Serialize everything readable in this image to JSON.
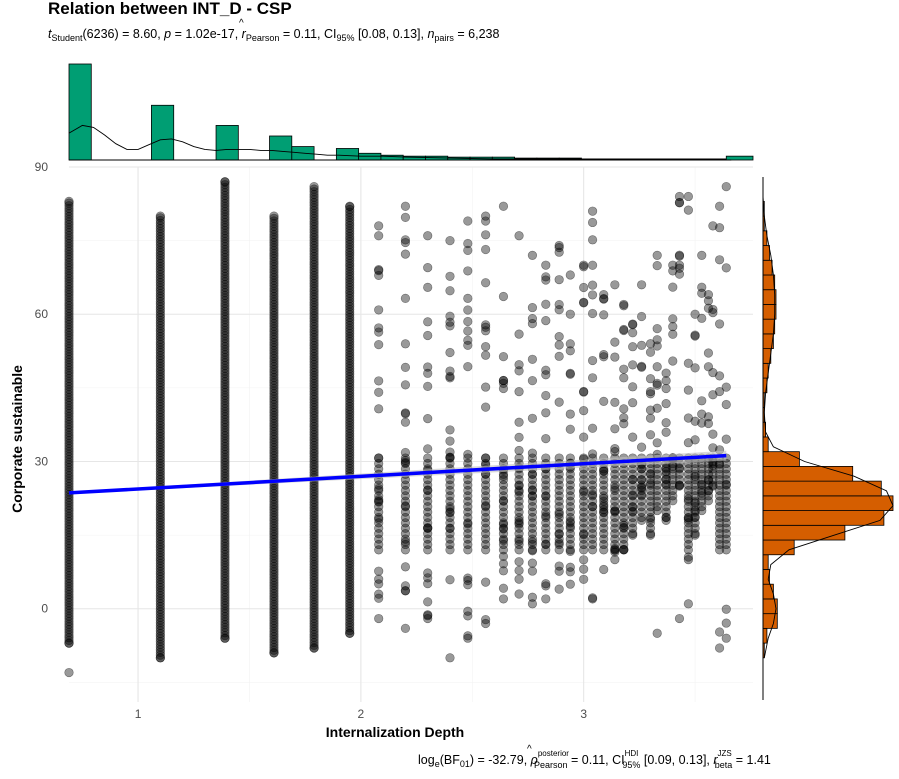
{
  "chart_data": {
    "type": "scatter",
    "title": "Relation between INT_D - CSP",
    "subtitle": {
      "t_label": "t",
      "t_sub": "Student",
      "t_rest": "(6236) = 8.60, ",
      "p_label": "p",
      "p_rest": " = 1.02e-17, ",
      "r_hat": "^",
      "r_label": "r",
      "r_sub": "Pearson",
      "r_rest": " = 0.11, CI",
      "ci_sub": "95%",
      "ci_rest": " [0.08, 0.13], ",
      "n_label": "n",
      "n_sub": "pairs",
      "n_rest": " = 6,238"
    },
    "caption": {
      "log_label": "log",
      "log_sub": "e",
      "bf_text": "(BF",
      "bf_sub": "01",
      "bf_rest": ") = -32.79, ",
      "rho_hat": "^",
      "rho_label": "ρ",
      "rho_sup": "posterior",
      "rho_sub": "Pearson",
      "rho_rest": " = 0.11, CI",
      "ci_sup": "HDI",
      "ci_sub": "95%",
      "ci_rest": " [0.09, 0.13], ",
      "r_label": "r",
      "r_sup": "JZS",
      "r_sub": "beta",
      "r_rest": " = 1.41"
    },
    "xlabel": "Internalization Depth",
    "ylabel": "Corporate sustainable",
    "xlim": [
      0.69,
      3.76
    ],
    "ylim": [
      -19,
      90
    ],
    "xticks": [
      1,
      2,
      3
    ],
    "yticks": [
      0,
      30,
      60,
      90
    ],
    "grid": true,
    "regression": {
      "x": [
        0.69,
        3.64
      ],
      "y": [
        23.6,
        31.2
      ],
      "color": "#0000ff",
      "ci_band_color": "#bfbfbf"
    },
    "point_color": "#000000",
    "point_opacity": 0.4,
    "columns": [
      {
        "x": 0.69,
        "ymin": -7,
        "ymax": 83,
        "extra": [
          -13
        ]
      },
      {
        "x": 1.1,
        "ymin": -10,
        "ymax": 80,
        "extra": []
      },
      {
        "x": 1.39,
        "ymin": -6,
        "ymax": 87,
        "extra": []
      },
      {
        "x": 1.61,
        "ymin": -9,
        "ymax": 80,
        "extra": []
      },
      {
        "x": 1.79,
        "ymin": -8,
        "ymax": 86,
        "extra": []
      },
      {
        "x": 1.95,
        "ymin": -5,
        "ymax": 82,
        "extra": []
      },
      {
        "x": 2.08,
        "ymin": -2,
        "ymax": 78,
        "extra": []
      },
      {
        "x": 2.2,
        "ymin": -4,
        "ymax": 82,
        "extra": []
      },
      {
        "x": 2.3,
        "ymin": -2,
        "ymax": 76,
        "extra": []
      },
      {
        "x": 2.4,
        "ymin": -10,
        "ymax": 75,
        "extra": []
      },
      {
        "x": 2.48,
        "ymin": -6,
        "ymax": 79,
        "extra": []
      },
      {
        "x": 2.56,
        "ymin": -3,
        "ymax": 80,
        "extra": []
      },
      {
        "x": 2.64,
        "ymin": 2,
        "ymax": 82,
        "extra": []
      },
      {
        "x": 2.71,
        "ymin": 3,
        "ymax": 76,
        "extra": []
      },
      {
        "x": 2.77,
        "ymin": 1,
        "ymax": 72,
        "extra": []
      },
      {
        "x": 2.83,
        "ymin": 2,
        "ymax": 70,
        "extra": []
      },
      {
        "x": 2.89,
        "ymin": 4,
        "ymax": 74,
        "extra": []
      },
      {
        "x": 2.94,
        "ymin": 5,
        "ymax": 68,
        "extra": []
      },
      {
        "x": 3.0,
        "ymin": 6,
        "ymax": 70,
        "extra": []
      },
      {
        "x": 3.04,
        "ymin": 2,
        "ymax": 81,
        "extra": []
      },
      {
        "x": 3.09,
        "ymin": 8,
        "ymax": 64,
        "extra": []
      },
      {
        "x": 3.14,
        "ymin": 10,
        "ymax": 66,
        "extra": []
      },
      {
        "x": 3.18,
        "ymin": 12,
        "ymax": 62,
        "extra": []
      },
      {
        "x": 3.22,
        "ymin": 15,
        "ymax": 58,
        "extra": []
      },
      {
        "x": 3.26,
        "ymin": 18,
        "ymax": 66,
        "extra": []
      },
      {
        "x": 3.3,
        "ymin": 15,
        "ymax": 54,
        "extra": []
      },
      {
        "x": 3.33,
        "ymin": 20,
        "ymax": 72,
        "extra": [
          -5
        ]
      },
      {
        "x": 3.37,
        "ymin": 18,
        "ymax": 48,
        "extra": []
      },
      {
        "x": 3.4,
        "ymin": 22,
        "ymax": 70,
        "extra": []
      },
      {
        "x": 3.43,
        "ymin": 25,
        "ymax": 84,
        "extra": [
          -2
        ]
      },
      {
        "x": 3.47,
        "ymin": 10,
        "ymax": 84,
        "extra": [
          1
        ]
      },
      {
        "x": 3.5,
        "ymin": 15,
        "ymax": 60,
        "extra": []
      },
      {
        "x": 3.53,
        "ymin": 20,
        "ymax": 72,
        "extra": []
      },
      {
        "x": 3.56,
        "ymin": 22,
        "ymax": 64,
        "extra": []
      },
      {
        "x": 3.58,
        "ymin": 25,
        "ymax": 78,
        "extra": []
      },
      {
        "x": 3.61,
        "ymin": -8,
        "ymax": 82,
        "extra": []
      },
      {
        "x": 3.64,
        "ymin": -6,
        "ymax": 86,
        "extra": []
      }
    ],
    "x_histogram": {
      "fill": "#009e73",
      "bins": [
        {
          "x0": 0.69,
          "x1": 0.79,
          "count": 100
        },
        {
          "x0": 0.79,
          "x1": 1.06,
          "count": 0
        },
        {
          "x0": 1.06,
          "x1": 1.16,
          "count": 57
        },
        {
          "x0": 1.16,
          "x1": 1.35,
          "count": 0
        },
        {
          "x0": 1.35,
          "x1": 1.45,
          "count": 36
        },
        {
          "x0": 1.45,
          "x1": 1.59,
          "count": 0
        },
        {
          "x0": 1.59,
          "x1": 1.69,
          "count": 25
        },
        {
          "x0": 1.69,
          "x1": 1.79,
          "count": 14
        },
        {
          "x0": 1.79,
          "x1": 1.89,
          "count": 0
        },
        {
          "x0": 1.89,
          "x1": 1.99,
          "count": 12
        },
        {
          "x0": 1.99,
          "x1": 2.09,
          "count": 7
        },
        {
          "x0": 2.09,
          "x1": 2.19,
          "count": 5
        },
        {
          "x0": 2.19,
          "x1": 2.29,
          "count": 4
        },
        {
          "x0": 2.29,
          "x1": 2.39,
          "count": 4
        },
        {
          "x0": 2.39,
          "x1": 2.49,
          "count": 3
        },
        {
          "x0": 2.49,
          "x1": 2.59,
          "count": 3
        },
        {
          "x0": 2.59,
          "x1": 2.69,
          "count": 3
        },
        {
          "x0": 2.69,
          "x1": 2.79,
          "count": 2
        },
        {
          "x0": 2.79,
          "x1": 2.89,
          "count": 2
        },
        {
          "x0": 2.89,
          "x1": 2.99,
          "count": 2
        },
        {
          "x0": 2.99,
          "x1": 3.09,
          "count": 1
        },
        {
          "x0": 3.09,
          "x1": 3.19,
          "count": 1
        },
        {
          "x0": 3.19,
          "x1": 3.29,
          "count": 1
        },
        {
          "x0": 3.29,
          "x1": 3.39,
          "count": 1
        },
        {
          "x0": 3.39,
          "x1": 3.49,
          "count": 1
        },
        {
          "x0": 3.49,
          "x1": 3.59,
          "count": 1
        },
        {
          "x0": 3.59,
          "x1": 3.64,
          "count": 1
        },
        {
          "x0": 3.64,
          "x1": 3.76,
          "count": 4
        }
      ],
      "density_x": [
        0.69,
        0.75,
        0.8,
        0.85,
        0.9,
        0.95,
        1.0,
        1.05,
        1.1,
        1.15,
        1.2,
        1.25,
        1.3,
        1.35,
        1.4,
        1.45,
        1.5,
        1.55,
        1.6,
        1.65,
        1.7,
        1.75,
        1.8,
        1.85,
        1.9,
        2.0,
        2.1,
        2.2,
        2.4,
        2.6,
        2.8,
        3.0,
        3.2,
        3.4,
        3.6,
        3.64
      ],
      "density_y": [
        28,
        36,
        34,
        26,
        17,
        11,
        11,
        16,
        21,
        22,
        19,
        14,
        11,
        10,
        11,
        11,
        11,
        10,
        10,
        9,
        8,
        7,
        6,
        5,
        5,
        4,
        4,
        3,
        2,
        1,
        1,
        1,
        1,
        1,
        1,
        1
      ]
    },
    "y_histogram": {
      "fill": "#d55e00",
      "bins": [
        {
          "y0": -10,
          "y1": -7,
          "count": 1
        },
        {
          "y0": -7,
          "y1": -4,
          "count": 3
        },
        {
          "y0": -4,
          "y1": -1,
          "count": 11
        },
        {
          "y0": -1,
          "y1": 2,
          "count": 11
        },
        {
          "y0": 2,
          "y1": 5,
          "count": 8
        },
        {
          "y0": 5,
          "y1": 8,
          "count": 5
        },
        {
          "y0": 8,
          "y1": 11,
          "count": 4
        },
        {
          "y0": 11,
          "y1": 14,
          "count": 24
        },
        {
          "y0": 14,
          "y1": 17,
          "count": 63
        },
        {
          "y0": 17,
          "y1": 20,
          "count": 93
        },
        {
          "y0": 20,
          "y1": 23,
          "count": 100
        },
        {
          "y0": 23,
          "y1": 26,
          "count": 91
        },
        {
          "y0": 26,
          "y1": 29,
          "count": 69
        },
        {
          "y0": 29,
          "y1": 32,
          "count": 28
        },
        {
          "y0": 32,
          "y1": 35,
          "count": 4
        },
        {
          "y0": 35,
          "y1": 38,
          "count": 2
        },
        {
          "y0": 38,
          "y1": 41,
          "count": 1
        },
        {
          "y0": 41,
          "y1": 44,
          "count": 1
        },
        {
          "y0": 44,
          "y1": 47,
          "count": 3
        },
        {
          "y0": 47,
          "y1": 50,
          "count": 4
        },
        {
          "y0": 50,
          "y1": 53,
          "count": 6
        },
        {
          "y0": 53,
          "y1": 56,
          "count": 8
        },
        {
          "y0": 56,
          "y1": 59,
          "count": 9
        },
        {
          "y0": 59,
          "y1": 62,
          "count": 10
        },
        {
          "y0": 62,
          "y1": 65,
          "count": 10
        },
        {
          "y0": 65,
          "y1": 68,
          "count": 9
        },
        {
          "y0": 68,
          "y1": 71,
          "count": 7
        },
        {
          "y0": 71,
          "y1": 74,
          "count": 5
        },
        {
          "y0": 74,
          "y1": 77,
          "count": 3
        },
        {
          "y0": 77,
          "y1": 80,
          "count": 1
        },
        {
          "y0": 80,
          "y1": 83,
          "count": 1
        }
      ],
      "density_y": [
        -10,
        -6,
        -3,
        0,
        3,
        6,
        9,
        12,
        15,
        18,
        21,
        24,
        27,
        30,
        33,
        36,
        40,
        44,
        48,
        52,
        56,
        60,
        64,
        68,
        72,
        76,
        80,
        84
      ],
      "density_x": [
        1,
        4,
        8,
        10,
        8,
        4,
        6,
        20,
        55,
        90,
        100,
        95,
        70,
        32,
        8,
        2,
        1,
        2,
        4,
        6,
        8,
        9,
        9,
        8,
        6,
        3,
        1,
        0
      ]
    }
  }
}
